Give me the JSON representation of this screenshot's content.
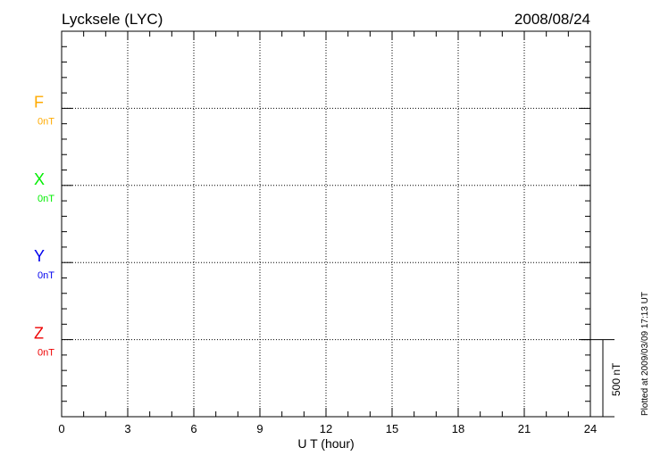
{
  "chart_data": {
    "type": "line",
    "title": "Lycksele (LYC)",
    "date": "2008/08/24",
    "xlabel": "U T (hour)",
    "xlim": [
      0,
      24
    ],
    "xticks": [
      "0",
      "3",
      "6",
      "9",
      "12",
      "15",
      "18",
      "21",
      "24"
    ],
    "grid": true,
    "series": [
      {
        "name": "F",
        "baseline_label": "0nT",
        "color": "#ffaa00",
        "values": []
      },
      {
        "name": "X",
        "baseline_label": "0nT",
        "color": "#00ee00",
        "values": []
      },
      {
        "name": "Y",
        "baseline_label": "0nT",
        "color": "#0000ee",
        "values": []
      },
      {
        "name": "Z",
        "baseline_label": "0nT",
        "color": "#ee0000",
        "values": []
      }
    ],
    "scale_bar_label": "500 nT",
    "footer": "Plotted at 2009/03/09 17:13 UT"
  }
}
